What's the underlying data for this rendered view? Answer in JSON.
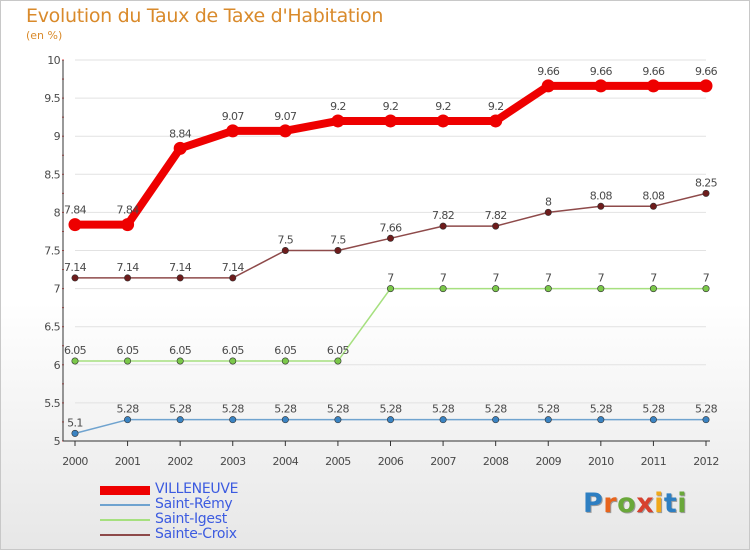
{
  "header": {
    "title": "Evolution du Taux de Taxe d'Habitation",
    "unit": "(en %)"
  },
  "logo": {
    "text": "Proxiti",
    "letters": [
      "P",
      "r",
      "o",
      "x",
      "i",
      "t",
      "i"
    ]
  },
  "colors": {
    "title": "#d98a2b",
    "legend_text": "#3c5be0",
    "logo_letters": [
      "#2e7fc2",
      "#e8641c",
      "#6aa83a",
      "#d7412f",
      "#f0a81a",
      "#2e7fc2",
      "#6aa83a"
    ]
  },
  "chart_data": {
    "type": "line",
    "title": "Evolution du Taux de Taxe d'Habitation",
    "ylabel": "(en %)",
    "xlabel": "",
    "ylim": [
      5,
      10
    ],
    "yticks": [
      "5",
      "5.5",
      "6",
      "6.5",
      "7",
      "7.5",
      "8",
      "8.5",
      "9",
      "9.5",
      "10"
    ],
    "ytick_values": [
      5,
      5.5,
      6,
      6.5,
      7,
      7.5,
      8,
      8.5,
      9,
      9.5,
      10
    ],
    "grid": true,
    "legend_position": "bottom-left",
    "categories": [
      "2000",
      "2001",
      "2002",
      "2003",
      "2004",
      "2005",
      "2006",
      "2007",
      "2008",
      "2009",
      "2010",
      "2011",
      "2012"
    ],
    "series": [
      {
        "name": "VILLENEUVE",
        "color": "#ee0000",
        "marker": "#ee0000",
        "width": "thick",
        "values": [
          7.84,
          7.84,
          8.84,
          9.07,
          9.07,
          9.2,
          9.2,
          9.2,
          9.2,
          9.66,
          9.66,
          9.66,
          9.66
        ],
        "labels": [
          "7.84",
          "7.84",
          "8.84",
          "9.07",
          "9.07",
          "9.2",
          "9.2",
          "9.2",
          "9.2",
          "9.66",
          "9.66",
          "9.66",
          "9.66"
        ]
      },
      {
        "name": "Saint-Rémy",
        "color": "#6fa3cf",
        "marker": "#3a83c2",
        "width": "thin",
        "values": [
          5.1,
          5.28,
          5.28,
          5.28,
          5.28,
          5.28,
          5.28,
          5.28,
          5.28,
          5.28,
          5.28,
          5.28,
          5.28
        ],
        "labels": [
          "5.1",
          "5.28",
          "5.28",
          "5.28",
          "5.28",
          "5.28",
          "5.28",
          "5.28",
          "5.28",
          "5.28",
          "5.28",
          "5.28",
          "5.28"
        ]
      },
      {
        "name": "Saint-Igest",
        "color": "#a6e07f",
        "marker": "#7bc84a",
        "width": "thin",
        "values": [
          6.05,
          6.05,
          6.05,
          6.05,
          6.05,
          6.05,
          7,
          7,
          7,
          7,
          7,
          7,
          7
        ],
        "labels": [
          "6.05",
          "6.05",
          "6.05",
          "6.05",
          "6.05",
          "6.05",
          "7",
          "7",
          "7",
          "7",
          "7",
          "7",
          "7"
        ]
      },
      {
        "name": "Sainte-Croix",
        "color": "#8e4a4a",
        "marker": "#6e1c1c",
        "width": "thin",
        "values": [
          7.14,
          7.14,
          7.14,
          7.14,
          7.5,
          7.5,
          7.66,
          7.82,
          7.82,
          8,
          8.08,
          8.08,
          8.25
        ],
        "labels": [
          "7.14",
          "7.14",
          "7.14",
          "7.14",
          "7.5",
          "7.5",
          "7.66",
          "7.82",
          "7.82",
          "8",
          "8.08",
          "8.08",
          "8.25"
        ]
      }
    ]
  }
}
